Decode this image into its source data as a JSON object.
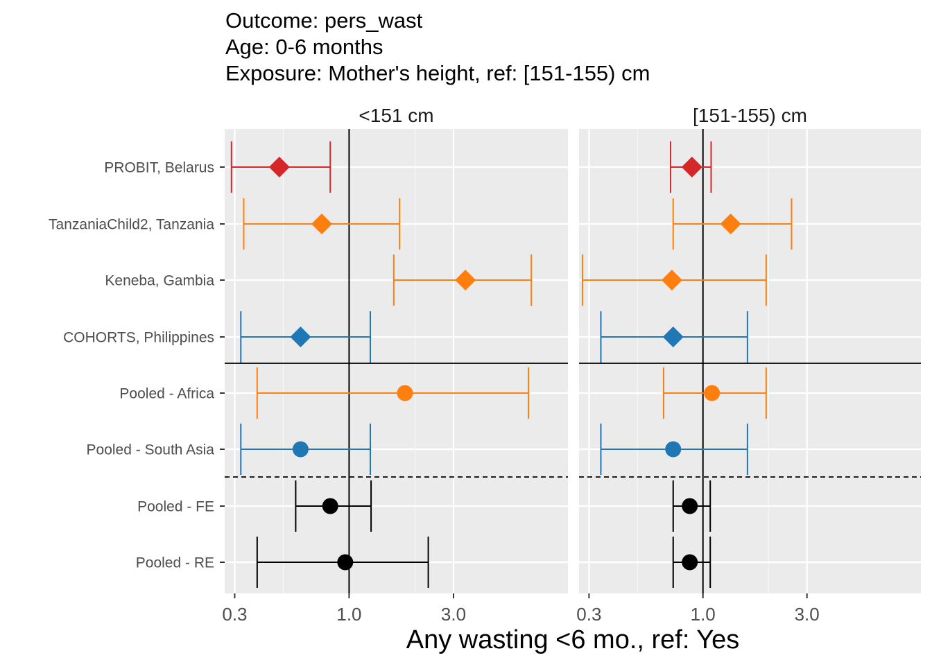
{
  "chart_data": {
    "type": "forest",
    "title_lines": [
      "Outcome: pers_wast",
      "Age: 0-6 months",
      "Exposure: Mother's height, ref: [151-155) cm"
    ],
    "xlabel": "Any wasting  <6 mo., ref: Yes",
    "x_scale": "log",
    "x_ticks": [
      0.3,
      1.0,
      3.0
    ],
    "x_tick_labels": [
      "0.3",
      "1.0",
      "3.0"
    ],
    "x_minor_ticks": [
      0.5,
      2.0
    ],
    "xlim": [
      0.27,
      10.0
    ],
    "reference_line": 1.0,
    "categories": [
      "PROBIT, Belarus",
      "TanzaniaChild2, Tanzania",
      "Keneba, Gambia",
      "COHORTS, Philippines",
      "Pooled - Africa",
      "Pooled - South Asia",
      "Pooled - FE",
      "Pooled - RE"
    ],
    "separators": [
      {
        "after_index": 3,
        "style": "solid"
      },
      {
        "after_index": 5,
        "style": "dashed"
      }
    ],
    "colors": {
      "Europe": "#d62728",
      "Africa": "#ff7f0e",
      "Asia": "#1f77b4",
      "Pooled": "#000000"
    },
    "panels": [
      {
        "label": "<151 cm",
        "rows": [
          {
            "study": "PROBIT, Belarus",
            "est": 0.48,
            "lo": 0.29,
            "hi": 0.82,
            "group": "Europe",
            "shape": "diamond"
          },
          {
            "study": "TanzaniaChild2, Tanzania",
            "est": 0.75,
            "lo": 0.33,
            "hi": 1.7,
            "group": "Africa",
            "shape": "diamond"
          },
          {
            "study": "Keneba, Gambia",
            "est": 3.4,
            "lo": 1.6,
            "hi": 6.8,
            "group": "Africa",
            "shape": "diamond"
          },
          {
            "study": "COHORTS, Philippines",
            "est": 0.6,
            "lo": 0.32,
            "hi": 1.25,
            "group": "Asia",
            "shape": "diamond"
          },
          {
            "study": "Pooled - Africa",
            "est": 1.8,
            "lo": 0.38,
            "hi": 6.6,
            "group": "Africa",
            "shape": "circle"
          },
          {
            "study": "Pooled - South Asia",
            "est": 0.6,
            "lo": 0.32,
            "hi": 1.25,
            "group": "Asia",
            "shape": "circle"
          },
          {
            "study": "Pooled - FE",
            "est": 0.82,
            "lo": 0.57,
            "hi": 1.26,
            "group": "Pooled",
            "shape": "circle"
          },
          {
            "study": "Pooled - RE",
            "est": 0.96,
            "lo": 0.38,
            "hi": 2.3,
            "group": "Pooled",
            "shape": "circle"
          }
        ]
      },
      {
        "label": "[151-155) cm",
        "rows": [
          {
            "study": "PROBIT, Belarus",
            "est": 0.89,
            "lo": 0.71,
            "hi": 1.09,
            "group": "Europe",
            "shape": "diamond"
          },
          {
            "study": "TanzaniaChild2, Tanzania",
            "est": 1.34,
            "lo": 0.73,
            "hi": 2.55,
            "group": "Africa",
            "shape": "diamond"
          },
          {
            "study": "Keneba, Gambia",
            "est": 0.72,
            "lo": 0.28,
            "hi": 1.95,
            "group": "Africa",
            "shape": "diamond"
          },
          {
            "study": "COHORTS, Philippines",
            "est": 0.73,
            "lo": 0.34,
            "hi": 1.6,
            "group": "Asia",
            "shape": "diamond"
          },
          {
            "study": "Pooled - Africa",
            "est": 1.1,
            "lo": 0.66,
            "hi": 1.95,
            "group": "Africa",
            "shape": "circle"
          },
          {
            "study": "Pooled - South Asia",
            "est": 0.73,
            "lo": 0.34,
            "hi": 1.6,
            "group": "Asia",
            "shape": "circle"
          },
          {
            "study": "Pooled - FE",
            "est": 0.87,
            "lo": 0.73,
            "hi": 1.08,
            "group": "Pooled",
            "shape": "circle"
          },
          {
            "study": "Pooled - RE",
            "est": 0.87,
            "lo": 0.73,
            "hi": 1.08,
            "group": "Pooled",
            "shape": "circle"
          }
        ]
      }
    ]
  }
}
